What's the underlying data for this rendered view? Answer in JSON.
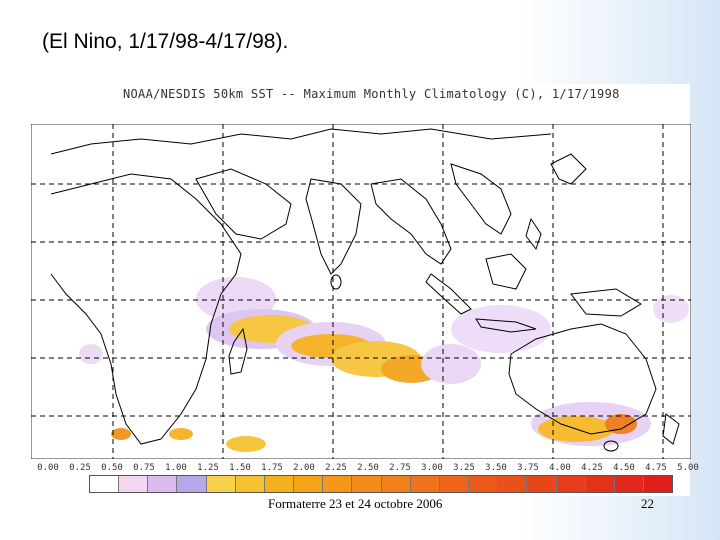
{
  "slide": {
    "title": "(El Nino, 1/17/98-4/17/98).",
    "footer": "Formaterre 23 et 24 octobre 2006",
    "page_number": "22"
  },
  "map": {
    "header": "NOAA/NESDIS 50km SST -- Maximum Monthly Climatology (C), 1/17/1998",
    "region": "Indian Ocean",
    "grid": "dashed lat/lon lines",
    "colorbar": {
      "labels": [
        "0.00",
        "0.25",
        "0.50",
        "0.75",
        "1.00",
        "1.25",
        "1.50",
        "1.75",
        "2.00",
        "2.25",
        "2.50",
        "2.75",
        "3.00",
        "3.25",
        "3.50",
        "3.75",
        "4.00",
        "4.25",
        "4.50",
        "4.75",
        "5.00"
      ],
      "colors": [
        "#ffffff",
        "#f4d6f2",
        "#dcbcf0",
        "#b8a6ec",
        "#f7d04a",
        "#f6c12e",
        "#f5b01e",
        "#f5a41a",
        "#f4971a",
        "#f28c1a",
        "#f1801a",
        "#f0721a",
        "#ee641a",
        "#ec5a1a",
        "#ea501a",
        "#e8461a",
        "#e63c1a",
        "#e4321a",
        "#e2281a",
        "#e01e1a"
      ]
    }
  }
}
